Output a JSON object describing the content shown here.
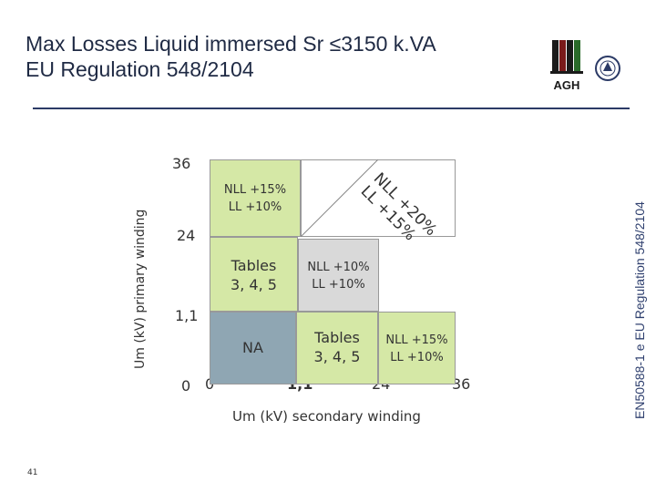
{
  "title": {
    "line1": "Max Losses Liquid immersed Sr ≤3150 k.VA",
    "line2": "EU Regulation 548/2104"
  },
  "side_text": "EN50588-1 e EU Regulation 548/2104",
  "logo_text": "AGH",
  "page_number": "41",
  "axes": {
    "y_label": "Um (kV) primary winding",
    "x_label": "Um (kV) secondary winding",
    "y_ticks": [
      "36",
      "24",
      "1,1",
      "0"
    ],
    "x_ticks": [
      "0",
      "1,1",
      "24",
      "36"
    ]
  },
  "cells": {
    "top_left": [
      "NLL +15%",
      "LL +10%"
    ],
    "top_right_diagonal": [
      "NLL +20%",
      "LL +15%"
    ],
    "mid_left": [
      "Tables",
      "3, 4, 5"
    ],
    "mid_center": [
      "NLL +10%",
      "LL +10%"
    ],
    "bottom_left": "NA",
    "bottom_center": [
      "Tables",
      "3, 4, 5"
    ],
    "bottom_right": [
      "NLL +15%",
      "LL +10%"
    ]
  },
  "colors": {
    "green": "#d5e8a6",
    "gray": "#d9d9d9",
    "blue_gray": "#8fa6b3",
    "title": "#1f2a44"
  }
}
